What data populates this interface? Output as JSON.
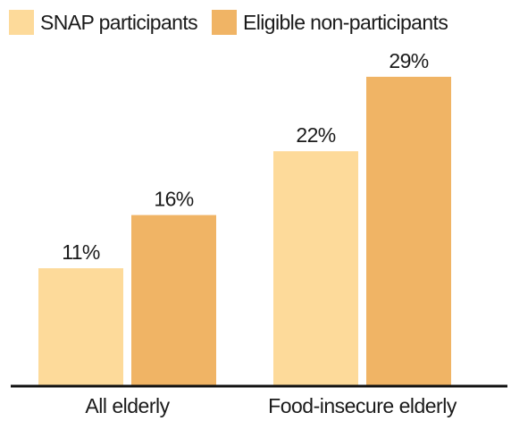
{
  "chart_data": {
    "type": "bar",
    "categories": [
      "All elderly",
      "Food-insecure elderly"
    ],
    "series": [
      {
        "name": "SNAP participants",
        "values": [
          11,
          22
        ],
        "labels": [
          "11%",
          "22%"
        ],
        "color": "#FDDA9A"
      },
      {
        "name": "Eligible non-participants",
        "values": [
          16,
          29
        ],
        "labels": [
          "16%",
          "29%"
        ],
        "color": "#F0B465"
      }
    ],
    "ylim": [
      0,
      36
    ],
    "grid": false,
    "legend": "top-left"
  }
}
